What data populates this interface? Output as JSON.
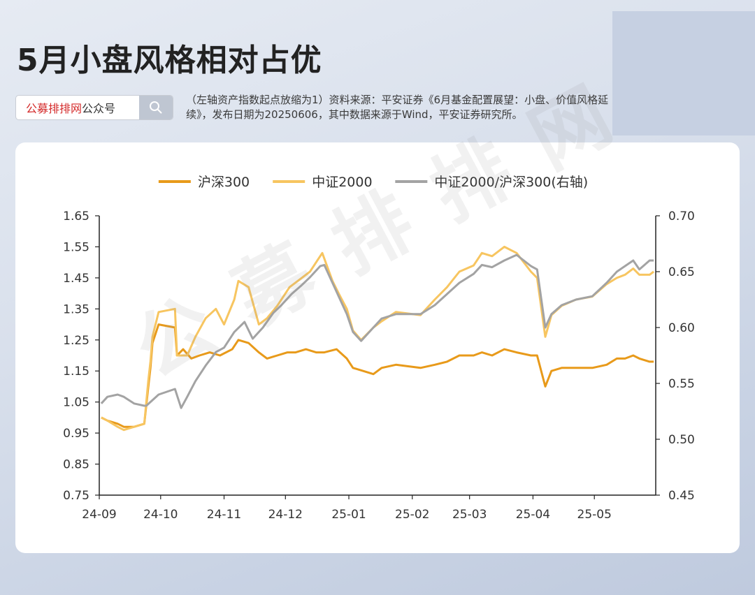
{
  "header": {
    "title": "5月小盘风格相对占优",
    "search": {
      "brand": "公募排排网",
      "suffix": "公众号",
      "icon": "search-icon"
    },
    "source_note": "（左轴资产指数起点放缩为1）资料来源：平安证券《6月基金配置展望：小盘、价值风格延续》，发布日期为20250606，其中数据来源于Wind，平安证券研究所。"
  },
  "watermark": "公募排排网",
  "colors": {
    "hs300": "#e89a1a",
    "zz2000": "#f7c560",
    "ratio": "#a3a3a3",
    "axis": "#222222"
  },
  "chart_data": {
    "type": "line",
    "x_ticks": [
      "24-09",
      "24-10",
      "24-11",
      "24-12",
      "25-01",
      "25-02",
      "25-03",
      "25-04",
      "25-05"
    ],
    "x_range": [
      "2024-09-01",
      "2025-05-31"
    ],
    "y_left": {
      "ticks": [
        "1.65",
        "1.55",
        "1.45",
        "1.35",
        "1.25",
        "1.15",
        "1.05",
        "0.95",
        "0.85",
        "0.75"
      ],
      "range": [
        0.75,
        1.65
      ]
    },
    "y_right": {
      "ticks": [
        "0.70",
        "0.65",
        "0.60",
        "0.55",
        "0.50",
        "0.45"
      ],
      "range": [
        0.45,
        0.7
      ]
    },
    "legend": [
      "沪深300",
      "中证2000",
      "中证2000/沪深300(右轴)"
    ],
    "series": [
      {
        "name": "沪深300",
        "axis": "left",
        "color": "#e89a1a",
        "points": [
          [
            "2024-09-02",
            1.0
          ],
          [
            "2024-09-05",
            0.99
          ],
          [
            "2024-09-10",
            0.98
          ],
          [
            "2024-09-13",
            0.97
          ],
          [
            "2024-09-18",
            0.97
          ],
          [
            "2024-09-23",
            0.98
          ],
          [
            "2024-09-24",
            1.04
          ],
          [
            "2024-09-25",
            1.1
          ],
          [
            "2024-09-26",
            1.16
          ],
          [
            "2024-09-27",
            1.24
          ],
          [
            "2024-09-30",
            1.3
          ],
          [
            "2024-10-08",
            1.29
          ],
          [
            "2024-10-09",
            1.2
          ],
          [
            "2024-10-12",
            1.22
          ],
          [
            "2024-10-16",
            1.19
          ],
          [
            "2024-10-20",
            1.2
          ],
          [
            "2024-10-25",
            1.21
          ],
          [
            "2024-10-30",
            1.2
          ],
          [
            "2024-11-05",
            1.22
          ],
          [
            "2024-11-08",
            1.25
          ],
          [
            "2024-11-13",
            1.24
          ],
          [
            "2024-11-18",
            1.21
          ],
          [
            "2024-11-22",
            1.19
          ],
          [
            "2024-11-27",
            1.2
          ],
          [
            "2024-12-02",
            1.21
          ],
          [
            "2024-12-06",
            1.21
          ],
          [
            "2024-12-11",
            1.22
          ],
          [
            "2024-12-16",
            1.21
          ],
          [
            "2024-12-20",
            1.21
          ],
          [
            "2024-12-26",
            1.22
          ],
          [
            "2024-12-31",
            1.19
          ],
          [
            "2025-01-03",
            1.16
          ],
          [
            "2025-01-08",
            1.15
          ],
          [
            "2025-01-13",
            1.14
          ],
          [
            "2025-01-17",
            1.16
          ],
          [
            "2025-01-24",
            1.17
          ],
          [
            "2025-02-05",
            1.16
          ],
          [
            "2025-02-12",
            1.17
          ],
          [
            "2025-02-18",
            1.18
          ],
          [
            "2025-02-24",
            1.2
          ],
          [
            "2025-03-03",
            1.2
          ],
          [
            "2025-03-07",
            1.21
          ],
          [
            "2025-03-12",
            1.2
          ],
          [
            "2025-03-18",
            1.22
          ],
          [
            "2025-03-24",
            1.21
          ],
          [
            "2025-03-31",
            1.2
          ],
          [
            "2025-04-03",
            1.2
          ],
          [
            "2025-04-07",
            1.1
          ],
          [
            "2025-04-10",
            1.15
          ],
          [
            "2025-04-15",
            1.16
          ],
          [
            "2025-04-22",
            1.16
          ],
          [
            "2025-04-30",
            1.16
          ],
          [
            "2025-05-07",
            1.17
          ],
          [
            "2025-05-12",
            1.19
          ],
          [
            "2025-05-16",
            1.19
          ],
          [
            "2025-05-20",
            1.2
          ],
          [
            "2025-05-23",
            1.19
          ],
          [
            "2025-05-28",
            1.18
          ],
          [
            "2025-05-30",
            1.18
          ]
        ]
      },
      {
        "name": "中证2000",
        "axis": "left",
        "color": "#f7c560",
        "points": [
          [
            "2024-09-02",
            1.0
          ],
          [
            "2024-09-05",
            0.99
          ],
          [
            "2024-09-10",
            0.97
          ],
          [
            "2024-09-13",
            0.96
          ],
          [
            "2024-09-18",
            0.97
          ],
          [
            "2024-09-23",
            0.98
          ],
          [
            "2024-09-24",
            1.05
          ],
          [
            "2024-09-25",
            1.12
          ],
          [
            "2024-09-26",
            1.18
          ],
          [
            "2024-09-27",
            1.26
          ],
          [
            "2024-09-30",
            1.34
          ],
          [
            "2024-10-08",
            1.35
          ],
          [
            "2024-10-09",
            1.2
          ],
          [
            "2024-10-14",
            1.2
          ],
          [
            "2024-10-18",
            1.26
          ],
          [
            "2024-10-23",
            1.32
          ],
          [
            "2024-10-28",
            1.35
          ],
          [
            "2024-11-01",
            1.3
          ],
          [
            "2024-11-06",
            1.38
          ],
          [
            "2024-11-08",
            1.44
          ],
          [
            "2024-11-13",
            1.42
          ],
          [
            "2024-11-18",
            1.3
          ],
          [
            "2024-11-22",
            1.32
          ],
          [
            "2024-11-27",
            1.36
          ],
          [
            "2024-12-03",
            1.42
          ],
          [
            "2024-12-09",
            1.45
          ],
          [
            "2024-12-13",
            1.47
          ],
          [
            "2024-12-17",
            1.51
          ],
          [
            "2024-12-19",
            1.53
          ],
          [
            "2024-12-24",
            1.44
          ],
          [
            "2024-12-27",
            1.4
          ],
          [
            "2024-12-31",
            1.35
          ],
          [
            "2025-01-03",
            1.28
          ],
          [
            "2025-01-07",
            1.25
          ],
          [
            "2025-01-13",
            1.29
          ],
          [
            "2025-01-17",
            1.31
          ],
          [
            "2025-01-24",
            1.34
          ],
          [
            "2025-02-05",
            1.33
          ],
          [
            "2025-02-12",
            1.38
          ],
          [
            "2025-02-18",
            1.42
          ],
          [
            "2025-02-24",
            1.47
          ],
          [
            "2025-03-03",
            1.49
          ],
          [
            "2025-03-07",
            1.53
          ],
          [
            "2025-03-12",
            1.52
          ],
          [
            "2025-03-18",
            1.55
          ],
          [
            "2025-03-24",
            1.53
          ],
          [
            "2025-03-31",
            1.47
          ],
          [
            "2025-04-03",
            1.45
          ],
          [
            "2025-04-07",
            1.26
          ],
          [
            "2025-04-10",
            1.33
          ],
          [
            "2025-04-15",
            1.36
          ],
          [
            "2025-04-22",
            1.38
          ],
          [
            "2025-04-30",
            1.39
          ],
          [
            "2025-05-07",
            1.43
          ],
          [
            "2025-05-12",
            1.45
          ],
          [
            "2025-05-16",
            1.46
          ],
          [
            "2025-05-20",
            1.48
          ],
          [
            "2025-05-23",
            1.46
          ],
          [
            "2025-05-28",
            1.46
          ],
          [
            "2025-05-30",
            1.47
          ]
        ]
      },
      {
        "name": "中证2000/沪深300(右轴)",
        "axis": "right",
        "color": "#a3a3a3",
        "points": [
          [
            "2024-09-02",
            0.532
          ],
          [
            "2024-09-05",
            0.538
          ],
          [
            "2024-09-10",
            0.54
          ],
          [
            "2024-09-13",
            0.538
          ],
          [
            "2024-09-18",
            0.532
          ],
          [
            "2024-09-23",
            0.53
          ],
          [
            "2024-09-24",
            0.53
          ],
          [
            "2024-09-27",
            0.535
          ],
          [
            "2024-09-30",
            0.54
          ],
          [
            "2024-10-08",
            0.545
          ],
          [
            "2024-10-11",
            0.528
          ],
          [
            "2024-10-14",
            0.538
          ],
          [
            "2024-10-18",
            0.552
          ],
          [
            "2024-10-23",
            0.566
          ],
          [
            "2024-10-28",
            0.578
          ],
          [
            "2024-11-01",
            0.582
          ],
          [
            "2024-11-06",
            0.596
          ],
          [
            "2024-11-11",
            0.605
          ],
          [
            "2024-11-15",
            0.59
          ],
          [
            "2024-11-20",
            0.6
          ],
          [
            "2024-11-25",
            0.613
          ],
          [
            "2024-11-29",
            0.62
          ],
          [
            "2024-12-04",
            0.63
          ],
          [
            "2024-12-09",
            0.638
          ],
          [
            "2024-12-13",
            0.645
          ],
          [
            "2024-12-18",
            0.655
          ],
          [
            "2024-12-20",
            0.656
          ],
          [
            "2024-12-24",
            0.64
          ],
          [
            "2024-12-27",
            0.628
          ],
          [
            "2024-12-31",
            0.612
          ],
          [
            "2025-01-03",
            0.596
          ],
          [
            "2025-01-07",
            0.588
          ],
          [
            "2025-01-13",
            0.6
          ],
          [
            "2025-01-17",
            0.608
          ],
          [
            "2025-01-24",
            0.612
          ],
          [
            "2025-02-05",
            0.612
          ],
          [
            "2025-02-12",
            0.62
          ],
          [
            "2025-02-18",
            0.63
          ],
          [
            "2025-02-24",
            0.64
          ],
          [
            "2025-03-03",
            0.648
          ],
          [
            "2025-03-07",
            0.656
          ],
          [
            "2025-03-12",
            0.654
          ],
          [
            "2025-03-18",
            0.66
          ],
          [
            "2025-03-24",
            0.665
          ],
          [
            "2025-03-31",
            0.655
          ],
          [
            "2025-04-03",
            0.652
          ],
          [
            "2025-04-07",
            0.6
          ],
          [
            "2025-04-10",
            0.612
          ],
          [
            "2025-04-15",
            0.62
          ],
          [
            "2025-04-22",
            0.625
          ],
          [
            "2025-04-30",
            0.628
          ],
          [
            "2025-05-07",
            0.64
          ],
          [
            "2025-05-12",
            0.65
          ],
          [
            "2025-05-16",
            0.655
          ],
          [
            "2025-05-20",
            0.66
          ],
          [
            "2025-05-23",
            0.652
          ],
          [
            "2025-05-28",
            0.66
          ],
          [
            "2025-05-30",
            0.66
          ]
        ]
      }
    ]
  }
}
